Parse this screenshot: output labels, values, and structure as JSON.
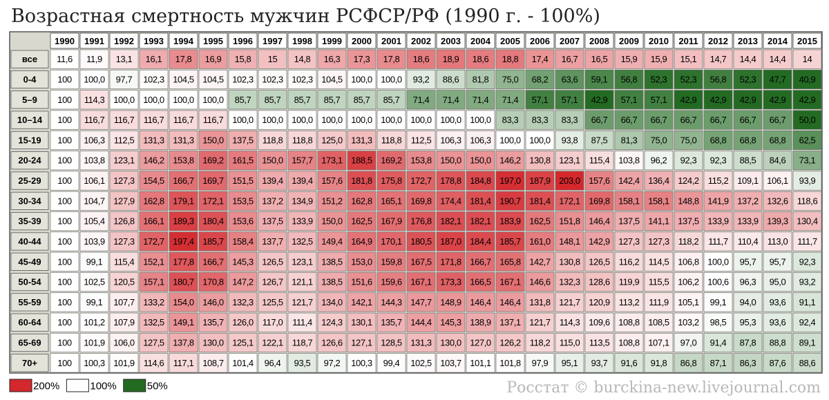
{
  "title": "Возрастная смертность мужчин РСФСР/РФ (1990 г. - 100%)",
  "source": "Росстат © burckina-new.livejournal.com",
  "table": {
    "columns": [
      "1990",
      "1991",
      "1992",
      "1993",
      "1994",
      "1995",
      "1996",
      "1997",
      "1998",
      "1999",
      "2000",
      "2001",
      "2002",
      "2003",
      "2004",
      "2005",
      "2006",
      "2007",
      "2008",
      "2009",
      "2010",
      "2011",
      "2012",
      "2013",
      "2014",
      "2015"
    ],
    "rows": [
      {
        "label": "все",
        "cells": [
          "11,6",
          "11,9",
          "13,1",
          "16,1",
          "17,8",
          "16,9",
          "15,8",
          "15",
          "14,8",
          "16,3",
          "17,3",
          "17,8",
          "18,6",
          "18,9",
          "18,6",
          "18,8",
          "17,4",
          "16,7",
          "16,5",
          "15,9",
          "15,9",
          "15,1",
          "14,7",
          "14,4",
          "14,4",
          "14"
        ]
      },
      {
        "label": "0-4",
        "cells": [
          "100",
          "100,0",
          "97,7",
          "102,3",
          "104,5",
          "104,5",
          "102,3",
          "102,3",
          "102,3",
          "104,5",
          "100,0",
          "100,0",
          "93,2",
          "88,6",
          "81,8",
          "75,0",
          "68,2",
          "63,6",
          "59,1",
          "56,8",
          "52,3",
          "52,3",
          "56,8",
          "52,3",
          "47,7",
          "40,9"
        ]
      },
      {
        "label": "5–9",
        "cells": [
          "100",
          "114,3",
          "100,0",
          "100,0",
          "100,0",
          "100,0",
          "85,7",
          "85,7",
          "85,7",
          "85,7",
          "85,7",
          "85,7",
          "71,4",
          "71,4",
          "71,4",
          "71,4",
          "57,1",
          "57,1",
          "42,9",
          "57,1",
          "57,1",
          "42,9",
          "42,9",
          "42,9",
          "42,9",
          "42,9"
        ]
      },
      {
        "label": "10–14",
        "cells": [
          "100",
          "116,7",
          "116,7",
          "116,7",
          "116,7",
          "116,7",
          "100,0",
          "100,0",
          "100,0",
          "100,0",
          "100,0",
          "100,0",
          "100,0",
          "100,0",
          "100,0",
          "83,3",
          "83,3",
          "83,3",
          "66,7",
          "66,7",
          "66,7",
          "66,7",
          "66,7",
          "66,7",
          "66,7",
          "50,0"
        ]
      },
      {
        "label": "15-19",
        "cells": [
          "100",
          "106,3",
          "112,5",
          "131,3",
          "131,3",
          "150,0",
          "137,5",
          "118,8",
          "118,8",
          "125,0",
          "131,3",
          "118,8",
          "112,5",
          "106,3",
          "106,3",
          "100,0",
          "100,0",
          "93,8",
          "87,5",
          "81,3",
          "75,0",
          "75,0",
          "68,8",
          "68,8",
          "68,8",
          "62,5"
        ]
      },
      {
        "label": "20-24",
        "cells": [
          "100",
          "103,8",
          "123,1",
          "146,2",
          "153,8",
          "169,2",
          "161,5",
          "150,0",
          "157,7",
          "173,1",
          "188,5",
          "169,2",
          "153,8",
          "150,0",
          "150,0",
          "146,2",
          "130,8",
          "123,1",
          "115,4",
          "103,8",
          "96,2",
          "92,3",
          "92,3",
          "88,5",
          "84,6",
          "73,1"
        ]
      },
      {
        "label": "25-29",
        "cells": [
          "100",
          "106,1",
          "127,3",
          "154,5",
          "166,7",
          "169,7",
          "151,5",
          "139,4",
          "139,4",
          "157,6",
          "181,8",
          "175,8",
          "172,7",
          "178,8",
          "184,8",
          "197,0",
          "187,9",
          "203,0",
          "157,6",
          "142,4",
          "136,4",
          "124,2",
          "115,2",
          "109,1",
          "106,1",
          "93,9"
        ]
      },
      {
        "label": "30-34",
        "cells": [
          "100",
          "104,7",
          "127,9",
          "162,8",
          "179,1",
          "172,1",
          "153,5",
          "137,2",
          "134,9",
          "151,2",
          "162,8",
          "165,1",
          "169,8",
          "174,4",
          "181,4",
          "190,7",
          "181,4",
          "172,1",
          "169,8",
          "158,1",
          "158,1",
          "148,8",
          "141,9",
          "137,2",
          "132,6",
          "118,6"
        ]
      },
      {
        "label": "35-39",
        "cells": [
          "100",
          "105,4",
          "126,8",
          "166,1",
          "189,3",
          "180,4",
          "153,6",
          "137,5",
          "133,9",
          "150,0",
          "162,5",
          "167,9",
          "176,8",
          "182,1",
          "182,1",
          "183,9",
          "162,5",
          "151,8",
          "146,4",
          "137,5",
          "141,1",
          "137,5",
          "133,9",
          "133,9",
          "139,3",
          "130,4"
        ]
      },
      {
        "label": "40-44",
        "cells": [
          "100",
          "103,9",
          "127,3",
          "172,7",
          "197,4",
          "185,7",
          "158,4",
          "137,7",
          "132,5",
          "149,4",
          "164,9",
          "170,1",
          "180,5",
          "187,0",
          "184,4",
          "185,7",
          "161,0",
          "148,1",
          "142,9",
          "127,3",
          "127,3",
          "118,2",
          "111,7",
          "110,4",
          "113,0",
          "111,7"
        ]
      },
      {
        "label": "45-49",
        "cells": [
          "100",
          "99,1",
          "115,4",
          "152,1",
          "177,8",
          "166,7",
          "145,3",
          "126,5",
          "123,1",
          "138,5",
          "153,0",
          "159,8",
          "167,5",
          "171,8",
          "166,7",
          "165,8",
          "142,7",
          "130,8",
          "126,5",
          "116,2",
          "114,5",
          "106,8",
          "100,0",
          "95,7",
          "95,7",
          "92,3"
        ]
      },
      {
        "label": "50-54",
        "cells": [
          "100",
          "102,5",
          "120,5",
          "157,1",
          "180,7",
          "170,8",
          "147,2",
          "126,7",
          "121,1",
          "138,5",
          "151,6",
          "159,6",
          "167,1",
          "173,3",
          "166,5",
          "167,1",
          "146,6",
          "132,3",
          "128,6",
          "119,9",
          "115,5",
          "106,2",
          "100,6",
          "96,3",
          "95,0",
          "93,2"
        ]
      },
      {
        "label": "55-59",
        "cells": [
          "100",
          "99,1",
          "107,7",
          "133,2",
          "154,0",
          "146,0",
          "132,3",
          "125,5",
          "121,7",
          "134,0",
          "142,1",
          "144,3",
          "147,7",
          "148,9",
          "146,4",
          "146,4",
          "131,8",
          "121,7",
          "120,9",
          "113,2",
          "111,9",
          "105,1",
          "99,1",
          "94,0",
          "93,6",
          "91,1"
        ]
      },
      {
        "label": "60-64",
        "cells": [
          "100",
          "101,2",
          "107,9",
          "132,5",
          "149,1",
          "135,7",
          "126,0",
          "117,0",
          "111,4",
          "124,3",
          "130,1",
          "135,7",
          "144,4",
          "145,3",
          "138,9",
          "137,1",
          "121,7",
          "114,3",
          "109,6",
          "108,8",
          "108,5",
          "103,2",
          "98,5",
          "95,3",
          "93,6",
          "92,4"
        ]
      },
      {
        "label": "65-69",
        "cells": [
          "100",
          "101,9",
          "106,0",
          "127,5",
          "137,8",
          "130,0",
          "125,1",
          "122,1",
          "118,7",
          "126,6",
          "127,1",
          "128,5",
          "131,3",
          "130,0",
          "127,0",
          "126,2",
          "118,2",
          "115,0",
          "113,5",
          "108,8",
          "107,1",
          "97,0",
          "91,4",
          "87,8",
          "88,8",
          "89,1"
        ]
      },
      {
        "label": "70+",
        "cells": [
          "100",
          "100,3",
          "101,9",
          "114,6",
          "117,1",
          "108,7",
          "101,4",
          "96,4",
          "93,5",
          "97,2",
          "100,3",
          "99,4",
          "102,5",
          "103,7",
          "101,1",
          "101,8",
          "97,9",
          "95,1",
          "93,7",
          "91,6",
          "91,8",
          "86,8",
          "87,1",
          "86,3",
          "87,6",
          "88,6"
        ]
      }
    ]
  },
  "legend": [
    {
      "label": "200%",
      "value": 200,
      "color": "#d4282d"
    },
    {
      "label": "100%",
      "value": 100,
      "color": "#ffffff"
    },
    {
      "label": "50%",
      "value": 50,
      "color": "#236b23"
    }
  ]
}
